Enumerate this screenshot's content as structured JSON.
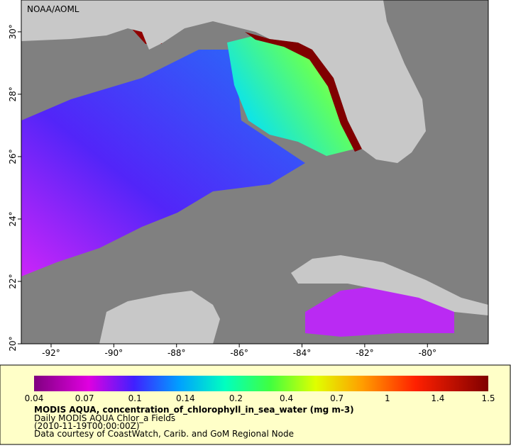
{
  "map": {
    "watermark": "NOAA/AOML",
    "xlim": [
      -92.95,
      -78.06
    ],
    "ylim": [
      20,
      31.02
    ],
    "xticks": [
      {
        "value": -92,
        "label": "-92°"
      },
      {
        "value": -90,
        "label": "-90°"
      },
      {
        "value": -88,
        "label": "-88°"
      },
      {
        "value": -86,
        "label": "-86°"
      },
      {
        "value": -84,
        "label": "-84°"
      },
      {
        "value": -82,
        "label": "-82°"
      },
      {
        "value": -80,
        "label": "-80°"
      }
    ],
    "yticks": [
      {
        "value": 20,
        "label": "20°"
      },
      {
        "value": 22,
        "label": "22°"
      },
      {
        "value": 24,
        "label": "24°"
      },
      {
        "value": 26,
        "label": "26°"
      },
      {
        "value": 28,
        "label": "28°"
      },
      {
        "value": 30,
        "label": "30°"
      }
    ]
  },
  "legend": {
    "colorbar_labels": [
      0.04,
      0.07,
      0.1,
      0.14,
      0.2,
      0.4,
      0.7,
      1,
      1.4,
      1.5
    ],
    "title": "MODIS AQUA, concentration_of_chlorophyll_in_sea_water (mg m-3)",
    "lines": [
      "Daily MODIS AQUA Chlor_a Fields",
      "(2010-11-19T00:00:00Z)",
      "Data courtesy of CoastWatch, Carib. and GoM Regional Node"
    ]
  }
}
